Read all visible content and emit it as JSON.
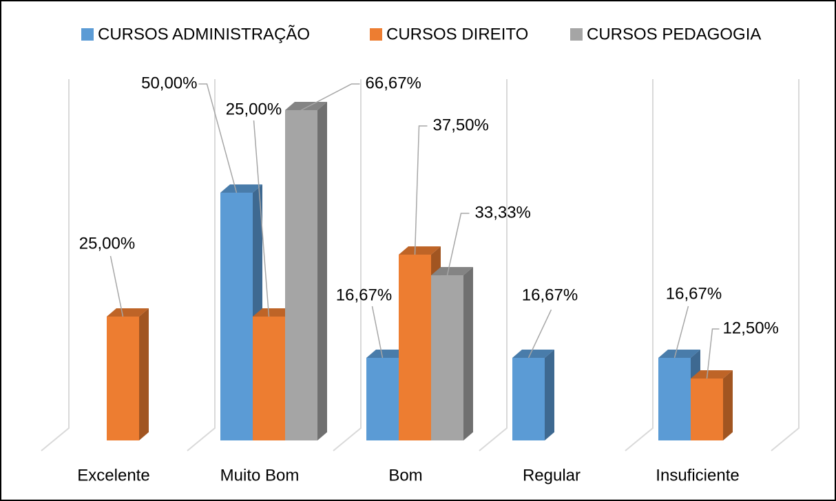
{
  "chart_data": {
    "type": "bar3d",
    "categories": [
      "Excelente",
      "Muito Bom",
      "Bom",
      "Regular",
      "Insuficiente"
    ],
    "series": [
      {
        "name": "CURSOS ADMINISTRAÇÃO",
        "color": "#5b9bd5",
        "values": [
          null,
          50,
          16.67,
          16.67,
          16.67
        ],
        "value_labels": [
          null,
          "50,00%",
          "16,67%",
          "16,67%",
          "16,67%"
        ]
      },
      {
        "name": "CURSOS DIREITO",
        "color": "#ed7d31",
        "values": [
          25,
          25,
          37.5,
          null,
          12.5
        ],
        "value_labels": [
          "25,00%",
          "25,00%",
          "37,50%",
          null,
          "12,50%"
        ]
      },
      {
        "name": "CURSOS PEDAGOGIA",
        "color": "#a5a5a5",
        "values": [
          null,
          66.67,
          33.33,
          null,
          null
        ],
        "value_labels": [
          null,
          "66,67%",
          "33,33%",
          null,
          null
        ]
      }
    ],
    "legend": "top"
  }
}
